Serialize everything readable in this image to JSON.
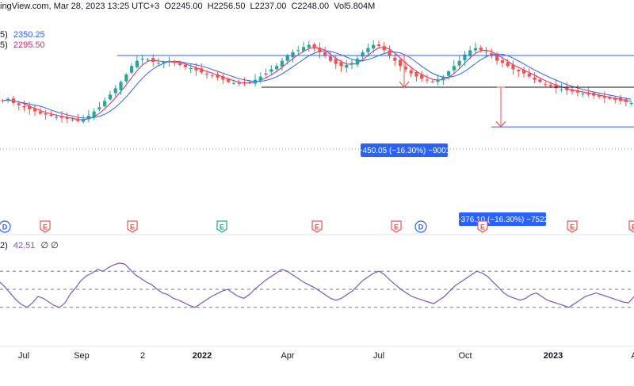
{
  "header": {
    "source": "ingView.com, Mar 28, 2023 13:25 UTC+3",
    "open": "O2245.00",
    "high": "H2256.50",
    "low": "L2237.00",
    "close": "C2248.00",
    "vol": "Vol5.804M"
  },
  "indicators": {
    "ma_fast": {
      "label": "5)",
      "value": "2350.25",
      "color": "#2962ff"
    },
    "ma_slow": {
      "label": "5)",
      "value": "2295.50",
      "color": "#e91e63"
    },
    "rsi": {
      "label": "2)",
      "value": "42.51",
      "extra": "∅ ∅",
      "color": "#7e57c2"
    }
  },
  "colors": {
    "up": "#26a69a",
    "down": "#ef5350",
    "accent": "#2962ff"
  },
  "chart_data": [
    {
      "type": "candlestick",
      "title": "",
      "x": [
        "Jul",
        "Sep",
        "2",
        "2022",
        "Apr",
        "Jul",
        "Oct",
        "2023",
        "A"
      ],
      "xlabel": "",
      "ylabel": "",
      "ylim": [
        1550,
        3350
      ],
      "levels": {
        "resistance": 3050,
        "support": 2750,
        "target": 2374
      },
      "measure_top_label": "−450.05 (−16.30%) −9001",
      "measure_bottom_label": "−376.10 (−16.30%) −7522",
      "event_markers": [
        {
          "label": "D",
          "kind": "dividend",
          "color": "#2962ff"
        },
        {
          "label": "E",
          "kind": "earnings",
          "color": "#ef5350"
        },
        {
          "label": "E",
          "kind": "earnings",
          "color": "#ef5350"
        },
        {
          "label": "E",
          "kind": "earnings",
          "color": "#26a69a"
        },
        {
          "label": "E",
          "kind": "earnings",
          "color": "#ef5350"
        },
        {
          "label": "E",
          "kind": "earnings",
          "color": "#ef5350"
        },
        {
          "label": "D",
          "kind": "dividend",
          "color": "#2962ff"
        },
        {
          "label": "E",
          "kind": "earnings",
          "color": "#ef5350"
        },
        {
          "label": "E",
          "kind": "earnings",
          "color": "#ef5350"
        },
        {
          "label": "E",
          "kind": "earnings",
          "color": "#ef5350"
        }
      ],
      "series_close": [
        2620,
        2640,
        2600,
        2580,
        2560,
        2540,
        2520,
        2500,
        2490,
        2480,
        2470,
        2460,
        2450,
        2440,
        2430,
        2450,
        2480,
        2520,
        2560,
        2620,
        2680,
        2740,
        2800,
        2870,
        2950,
        3000,
        3020,
        3010,
        2990,
        2980,
        2990,
        3000,
        2980,
        2960,
        2940,
        2930,
        2910,
        2890,
        2870,
        2860,
        2840,
        2820,
        2800,
        2790,
        2780,
        2790,
        2800,
        2820,
        2850,
        2880,
        2920,
        2950,
        3000,
        3050,
        3080,
        3100,
        3130,
        3150,
        3120,
        3080,
        3050,
        3000,
        2970,
        2950,
        2960,
        2980,
        3020,
        3080,
        3120,
        3150,
        3140,
        3100,
        3050,
        3000,
        2950,
        2920,
        2880,
        2850,
        2830,
        2820,
        2800,
        2820,
        2850,
        2900,
        2950,
        3000,
        3060,
        3100,
        3120,
        3100,
        3080,
        3050,
        3000,
        2980,
        2950,
        2920,
        2900,
        2880,
        2850,
        2820,
        2800,
        2780,
        2760,
        2740,
        2730,
        2720,
        2710,
        2700,
        2690,
        2680,
        2670,
        2660,
        2650,
        2640,
        2630,
        2620,
        2610,
        2600
      ],
      "rsi": {
        "ylim": [
          0,
          100
        ],
        "levels": [
          70,
          50,
          30
        ],
        "values": [
          58,
          52,
          45,
          38,
          33,
          30,
          35,
          42,
          40,
          36,
          32,
          30,
          35,
          45,
          52,
          60,
          65,
          68,
          72,
          70,
          74,
          77,
          79,
          78,
          72,
          66,
          62,
          58,
          55,
          50,
          46,
          44,
          40,
          38,
          35,
          32,
          30,
          34,
          38,
          42,
          45,
          48,
          50,
          46,
          42,
          40,
          44,
          50,
          55,
          60,
          64,
          68,
          72,
          70,
          66,
          62,
          58,
          55,
          52,
          48,
          44,
          40,
          38,
          40,
          44,
          48,
          54,
          60,
          64,
          68,
          70,
          66,
          60,
          55,
          50,
          46,
          42,
          40,
          38,
          36,
          34,
          38,
          42,
          48,
          54,
          58,
          62,
          66,
          70,
          68,
          64,
          58,
          52,
          46,
          42,
          40,
          38,
          40,
          44,
          46,
          42,
          38,
          36,
          34,
          32,
          30,
          34,
          38,
          42,
          44,
          46,
          44,
          42,
          40,
          38,
          36,
          35,
          42
        ]
      }
    }
  ]
}
